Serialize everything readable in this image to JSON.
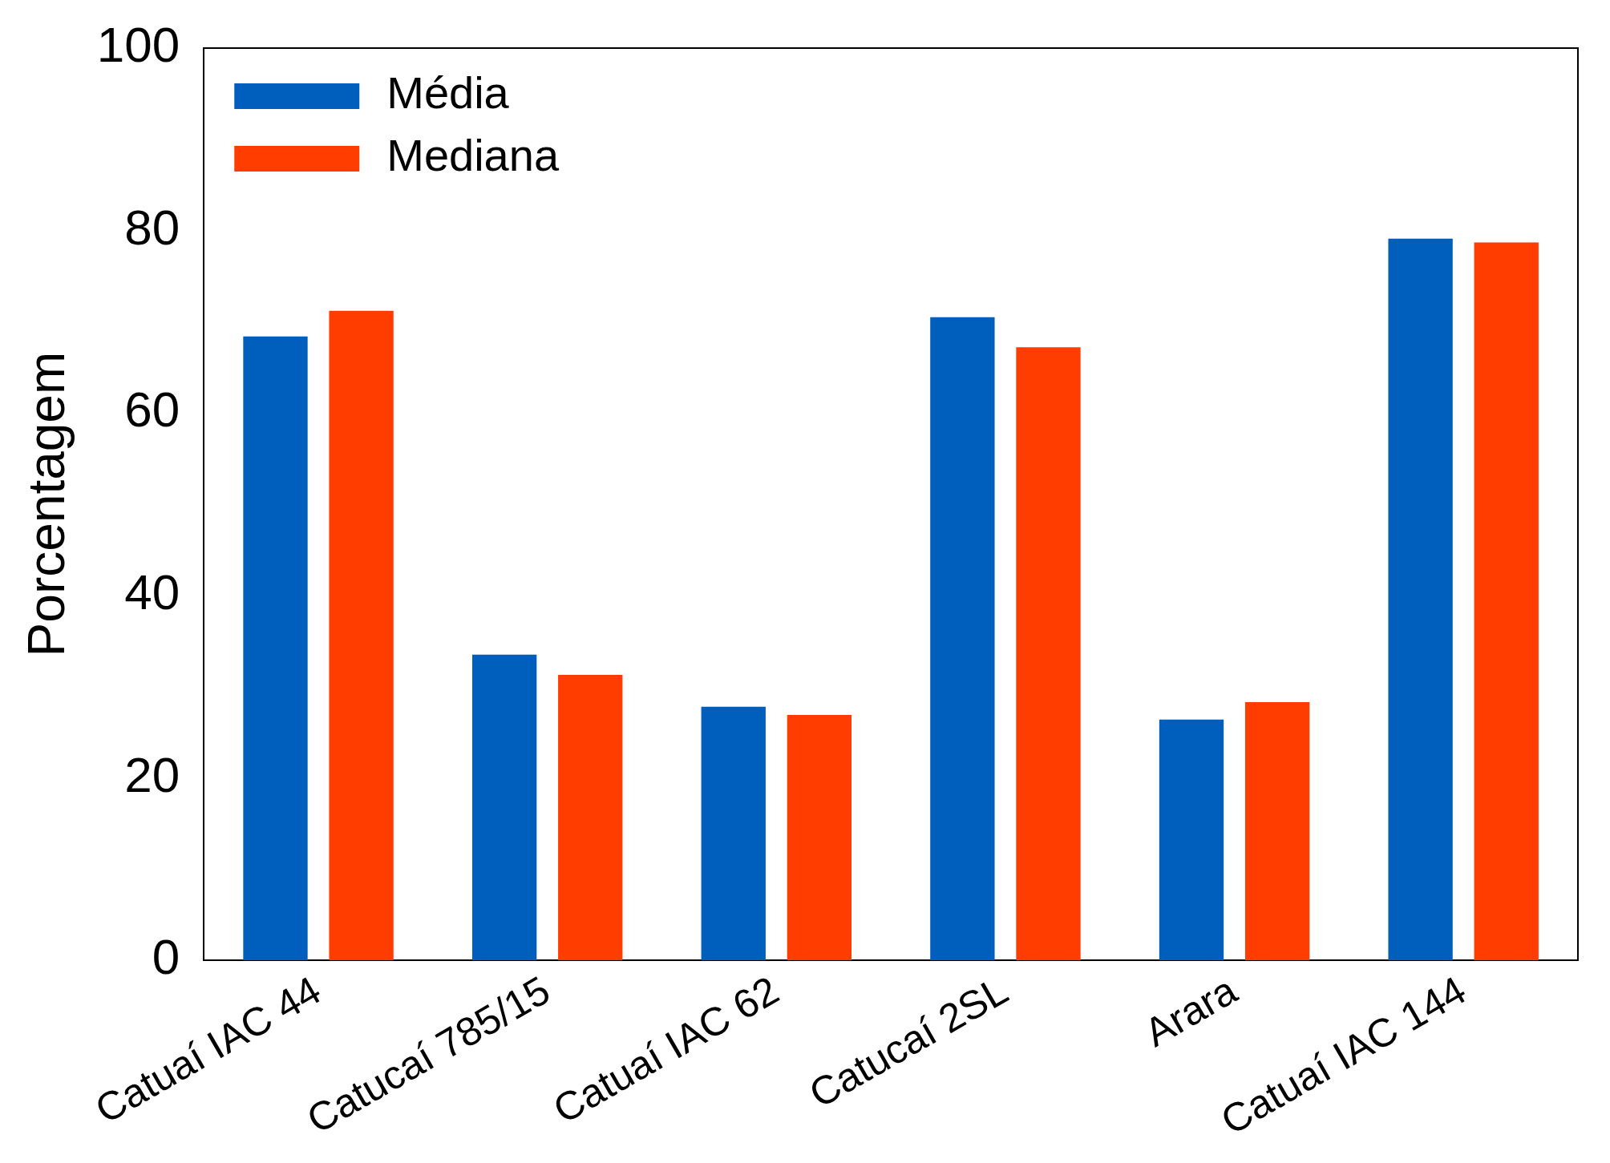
{
  "chart_data": {
    "type": "bar",
    "ylabel": "Porcentagem",
    "categories": [
      "Catuaí IAC 44",
      "Catucaí 785/15",
      "Catuaí IAC 62",
      "Catucaí 2SL",
      "Arara",
      "Catuaí IAC 144"
    ],
    "series": [
      {
        "name": "Média",
        "color": "#005ebd",
        "values": [
          68.4,
          33.5,
          27.8,
          70.5,
          26.4,
          79.1
        ]
      },
      {
        "name": "Mediana",
        "color": "#ff3d00",
        "values": [
          71.2,
          31.3,
          26.9,
          67.2,
          28.3,
          78.7
        ]
      }
    ],
    "ylim": [
      0,
      100
    ],
    "yticks": [
      0,
      20,
      40,
      60,
      80,
      100
    ],
    "grid": false,
    "legend": "top left"
  }
}
